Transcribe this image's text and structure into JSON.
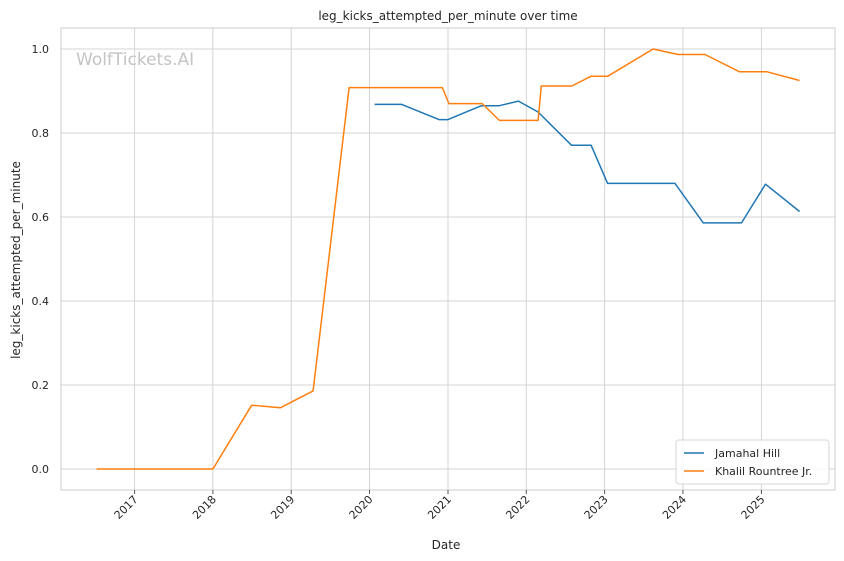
{
  "chart_data": {
    "type": "line",
    "title": "leg_kicks_attempted_per_minute over time",
    "xlabel": "Date",
    "ylabel": "leg_kicks_attempted_per_minute",
    "watermark": "WolfTickets.AI",
    "x_ticks": [
      "2017",
      "2018",
      "2019",
      "2020",
      "2021",
      "2022",
      "2023",
      "2024",
      "2025"
    ],
    "y_ticks": [
      "0.0",
      "0.2",
      "0.4",
      "0.6",
      "0.8",
      "1.0"
    ],
    "xlim": [
      "2016-01-24",
      "2025-12-10"
    ],
    "ylim": [
      -0.05,
      1.05
    ],
    "grid": true,
    "legend_position": "lower-right",
    "series": [
      {
        "name": "Jamahal Hill",
        "color": "#1f77b4",
        "points": [
          [
            "2020-01-25",
            0.868
          ],
          [
            "2020-05-30",
            0.868
          ],
          [
            "2020-11-20",
            0.832
          ],
          [
            "2021-01-01",
            0.832
          ],
          [
            "2021-06-05",
            0.865
          ],
          [
            "2021-08-28",
            0.865
          ],
          [
            "2021-11-25",
            0.876
          ],
          [
            "2022-02-25",
            0.85
          ],
          [
            "2022-07-30",
            0.771
          ],
          [
            "2022-10-30",
            0.771
          ],
          [
            "2023-01-15",
            0.68
          ],
          [
            "2023-11-25",
            0.68
          ],
          [
            "2024-04-05",
            0.586
          ],
          [
            "2024-09-30",
            0.586
          ],
          [
            "2025-01-20",
            0.678
          ],
          [
            "2025-06-28",
            0.613
          ]
        ]
      },
      {
        "name": "Khalil Rountree Jr.",
        "color": "#ff7f0e",
        "points": [
          [
            "2016-07-08",
            0.0
          ],
          [
            "2018-01-01",
            0.0
          ],
          [
            "2018-07-01",
            0.152
          ],
          [
            "2018-11-12",
            0.146
          ],
          [
            "2019-04-13",
            0.186
          ],
          [
            "2019-09-28",
            0.908
          ],
          [
            "2020-12-06",
            0.908
          ],
          [
            "2021-01-05",
            0.87
          ],
          [
            "2021-06-10",
            0.87
          ],
          [
            "2021-08-28",
            0.83
          ],
          [
            "2022-02-25",
            0.83
          ],
          [
            "2022-03-12",
            0.912
          ],
          [
            "2022-08-01",
            0.912
          ],
          [
            "2022-10-29",
            0.935
          ],
          [
            "2023-01-15",
            0.935
          ],
          [
            "2023-08-15",
            1.0
          ],
          [
            "2023-12-10",
            0.987
          ],
          [
            "2024-04-13",
            0.987
          ],
          [
            "2024-09-20",
            0.946
          ],
          [
            "2025-01-25",
            0.946
          ],
          [
            "2025-06-28",
            0.925
          ]
        ]
      }
    ]
  }
}
